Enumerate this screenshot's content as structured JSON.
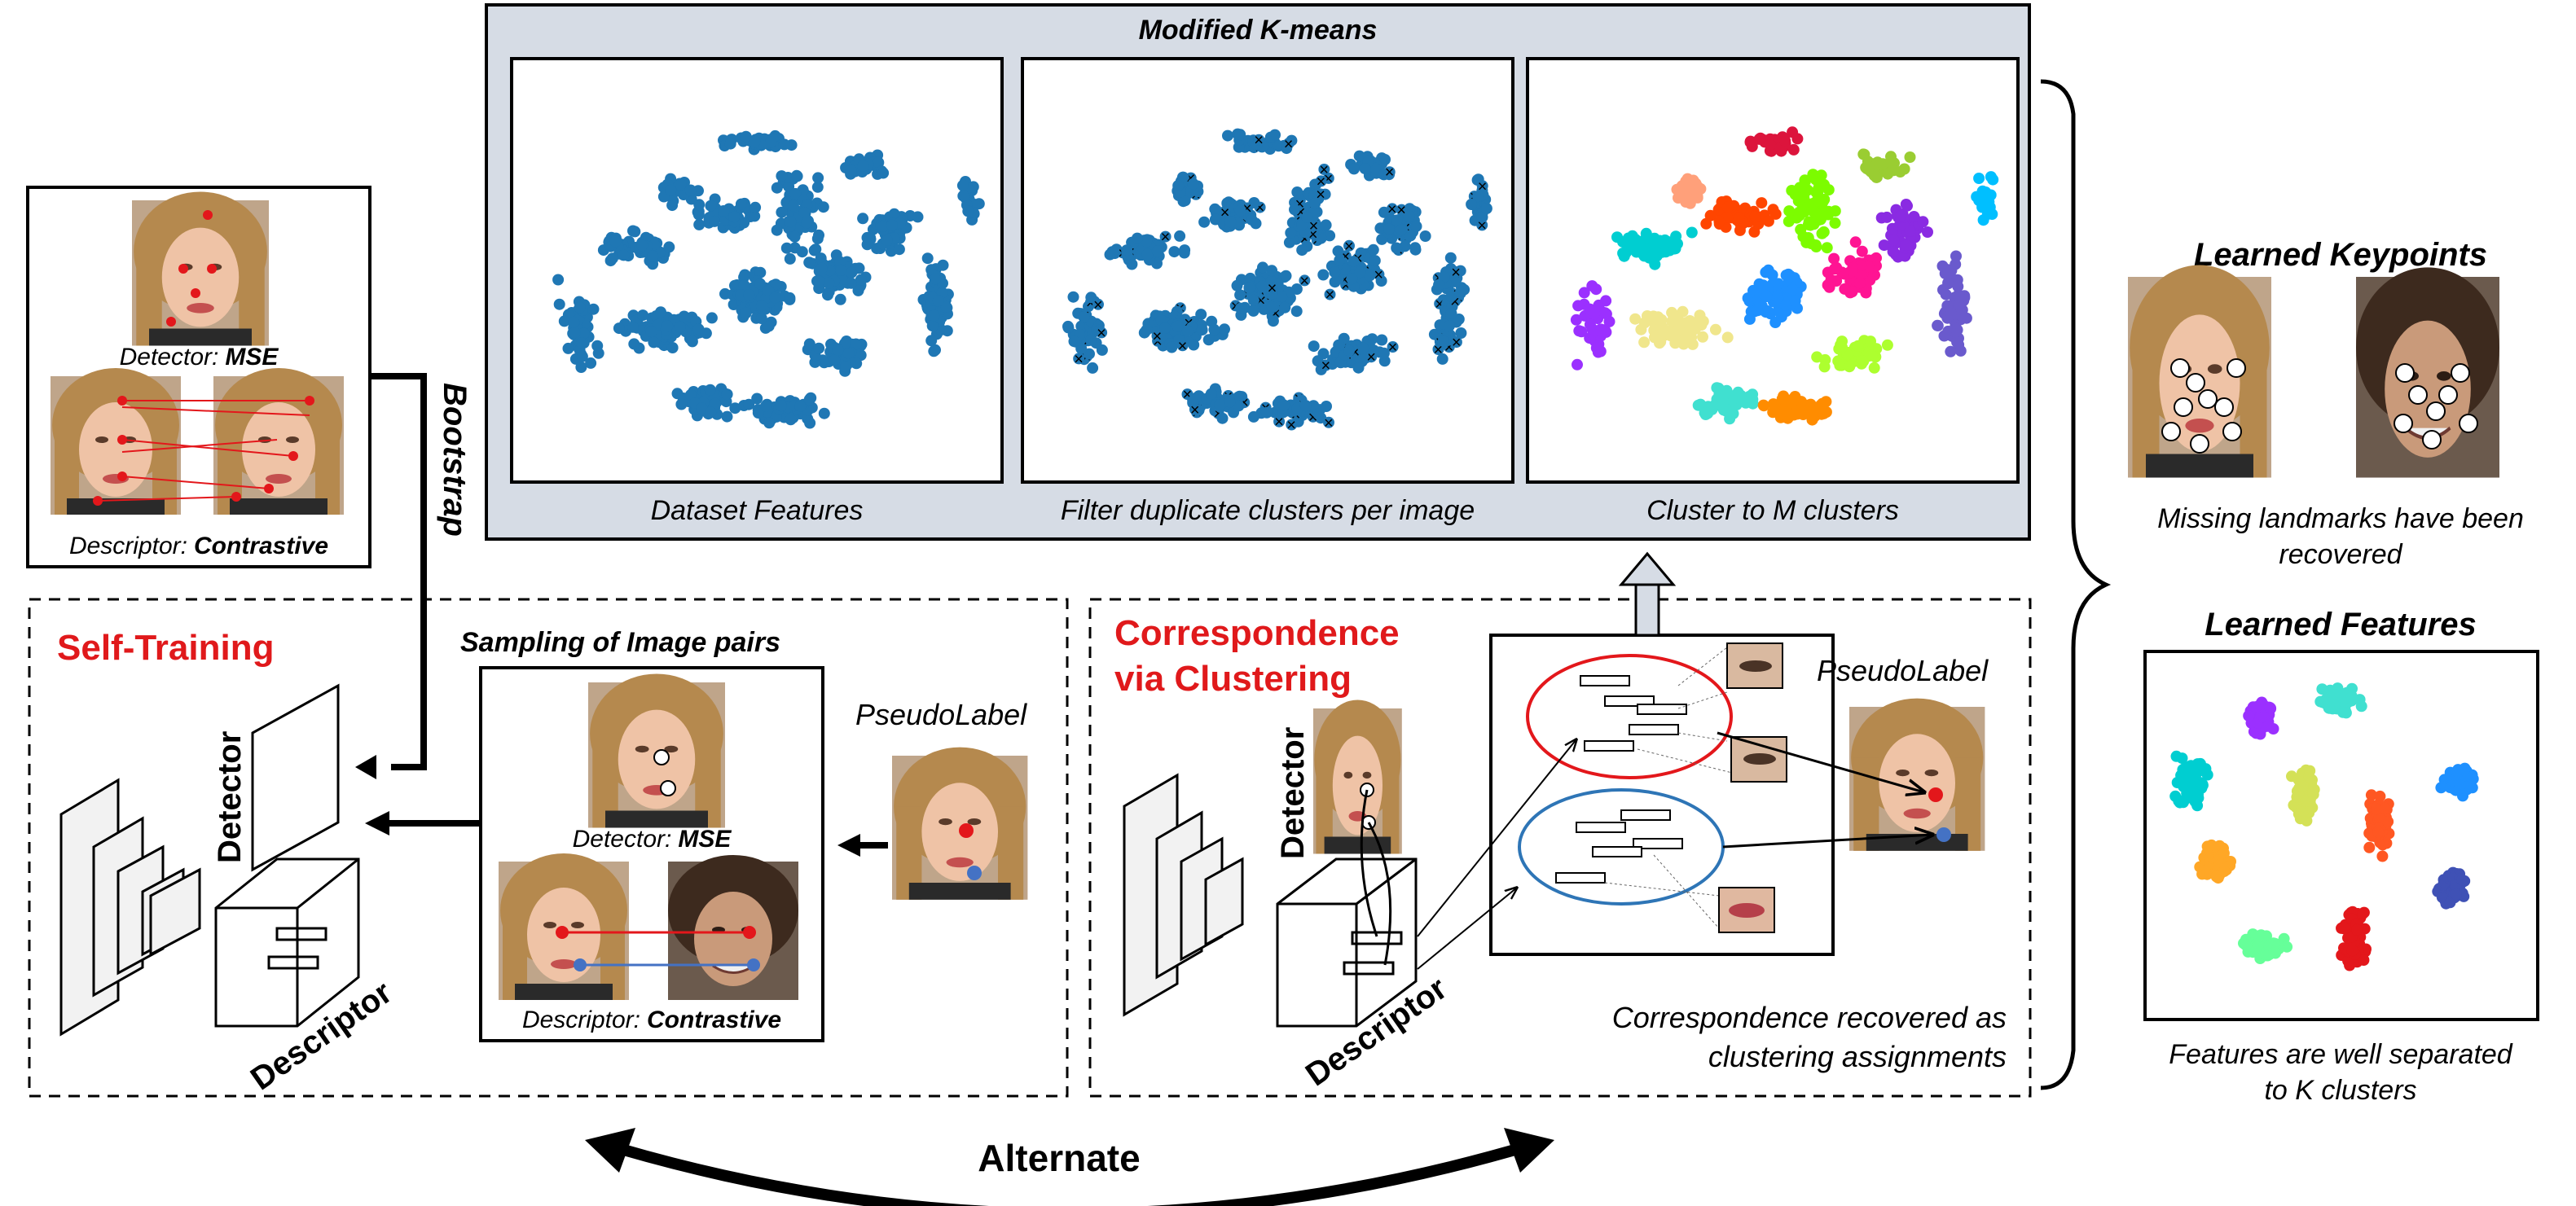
{
  "kmeans": {
    "title": "Modified K-means",
    "panels": [
      {
        "caption": "Dataset Features"
      },
      {
        "caption": "Filter duplicate clusters per image"
      },
      {
        "caption": "Cluster to M clusters"
      }
    ]
  },
  "bootstrap": {
    "label": "Bootstrap",
    "detector_label": "Detector:",
    "detector_loss": "MSE",
    "descriptor_label": "Descriptor:",
    "descriptor_loss": "Contrastive"
  },
  "self_training": {
    "title": "Self-Training",
    "sampling_title": "Sampling of Image pairs",
    "detector_text": "Detector",
    "descriptor_text": "Descriptor",
    "detector_label": "Detector:",
    "detector_loss": "MSE",
    "descriptor_label": "Descriptor:",
    "descriptor_loss": "Contrastive",
    "pseudolabel": "PseudoLabel"
  },
  "correspondence": {
    "title_line1": "Correspondence",
    "title_line2": "via Clustering",
    "detector_text": "Detector",
    "descriptor_text": "Descriptor",
    "pseudolabel": "PseudoLabel",
    "caption_line1": "Correspondence recovered as",
    "caption_line2": "clustering assignments"
  },
  "keypoints": {
    "title": "Learned Keypoints",
    "caption_line1": "Missing landmarks have been",
    "caption_line2": "recovered"
  },
  "features": {
    "title": "Learned Features",
    "caption_line1": "Features are well separated",
    "caption_line2": "to K clusters"
  },
  "alternate": {
    "label": "Alternate"
  },
  "colors": {
    "accent_red": "#e0191b",
    "scatter_blue": "#1f77b4",
    "panel_bg": "#d6dce5",
    "keypoint_red": "#e3171b",
    "keypoint_blue": "#4472c4"
  },
  "icons": [
    "face-photo",
    "feature-cube",
    "network-stack",
    "cluster-ellipse"
  ]
}
